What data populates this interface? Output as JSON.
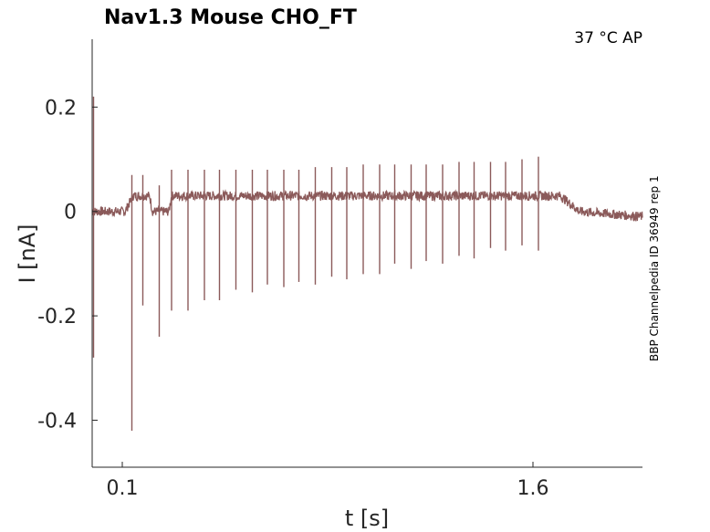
{
  "chart_data": {
    "type": "line",
    "title": "Nav1.3  Mouse  CHO_FT",
    "annotation": "37 °C  AP",
    "side_label": "BBP Channelpedia ID 36949 rep 1",
    "xlabel": "t [s]",
    "ylabel": "I [nA]",
    "xlim": [
      -0.01,
      2.0
    ],
    "ylim": [
      -0.49,
      0.33
    ],
    "xticks": [
      0.1,
      1.6
    ],
    "xtick_labels": [
      "0.1",
      "1.6"
    ],
    "yticks": [
      0.2,
      0,
      -0.2,
      -0.4
    ],
    "ytick_labels": [
      "0.2",
      "0",
      "-0.2",
      "-0.4"
    ],
    "grid": false,
    "color": "#8B5A5A",
    "series": [
      {
        "baseline": [
          [
            -0.01,
            0.0
          ],
          [
            0.11,
            0.0
          ],
          [
            0.14,
            0.03
          ],
          [
            0.2,
            0.03
          ],
          [
            0.21,
            0.0
          ],
          [
            0.27,
            0.0
          ],
          [
            0.28,
            0.03
          ],
          [
            1.7,
            0.03
          ],
          [
            1.77,
            0.0
          ],
          [
            2.0,
            -0.01
          ]
        ],
        "spikes": [
          [
            -0.005,
            0.22,
            -0.28
          ],
          [
            0.135,
            0.07,
            -0.42
          ],
          [
            0.175,
            0.07,
            -0.18
          ],
          [
            0.235,
            0.05,
            -0.24
          ],
          [
            0.28,
            0.08,
            -0.19
          ],
          [
            0.34,
            0.08,
            -0.19
          ],
          [
            0.4,
            0.08,
            -0.17
          ],
          [
            0.455,
            0.08,
            -0.17
          ],
          [
            0.515,
            0.08,
            -0.15
          ],
          [
            0.575,
            0.08,
            -0.155
          ],
          [
            0.63,
            0.08,
            -0.14
          ],
          [
            0.69,
            0.08,
            -0.145
          ],
          [
            0.745,
            0.08,
            -0.135
          ],
          [
            0.805,
            0.085,
            -0.14
          ],
          [
            0.865,
            0.085,
            -0.125
          ],
          [
            0.92,
            0.085,
            -0.13
          ],
          [
            0.98,
            0.09,
            -0.12
          ],
          [
            1.04,
            0.09,
            -0.12
          ],
          [
            1.095,
            0.09,
            -0.1
          ],
          [
            1.155,
            0.09,
            -0.11
          ],
          [
            1.21,
            0.09,
            -0.095
          ],
          [
            1.27,
            0.09,
            -0.1
          ],
          [
            1.33,
            0.095,
            -0.085
          ],
          [
            1.385,
            0.095,
            -0.09
          ],
          [
            1.445,
            0.095,
            -0.07
          ],
          [
            1.5,
            0.095,
            -0.075
          ],
          [
            1.56,
            0.1,
            -0.065
          ],
          [
            1.62,
            0.105,
            -0.075
          ]
        ]
      }
    ]
  }
}
